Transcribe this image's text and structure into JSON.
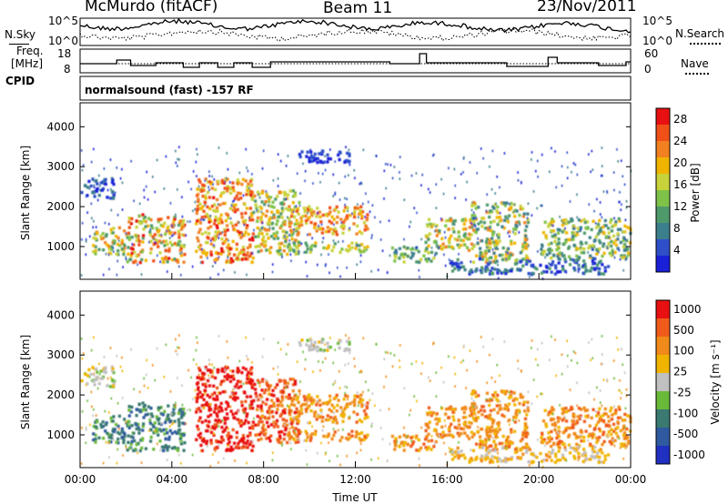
{
  "header": {
    "station": "McMurdo (fitACF)",
    "beam": "Beam 11",
    "date": "23/Nov/2011"
  },
  "panel_labels": {
    "nsky": "N.Sky",
    "nsearch": "N.Search",
    "freq_line1": "Freq.",
    "freq_line2": "[MHz]",
    "nave": "Nave",
    "cpid": "CPID",
    "cpid_value": "normalsound (fast) -157 RF"
  },
  "colors": {
    "frame": "#000000",
    "power_scale": [
      "#1a20d8",
      "#2f4fc8",
      "#3c7f8c",
      "#4f9a6a",
      "#7fc24a",
      "#c8d23a",
      "#f0b400",
      "#f08020",
      "#f05018",
      "#e81010"
    ],
    "velocity_scale": [
      "#2030c0",
      "#305aa0",
      "#3a7a70",
      "#6aba3a",
      "#c0c0c0",
      "#f0b400",
      "#f08a1a",
      "#f05a1a",
      "#e81010"
    ]
  },
  "chart_data": [
    {
      "type": "line",
      "name": "noise panel",
      "y_left_ticks": [
        "10^5",
        "10^0"
      ],
      "y_right_ticks": [
        "10^5",
        "10^0"
      ],
      "series": [
        {
          "name": "N.Sky",
          "style": "solid"
        },
        {
          "name": "N.Search",
          "style": "dotted"
        }
      ]
    },
    {
      "type": "line",
      "name": "frequency / nave panel",
      "y_left_ticks": [
        "18",
        "8"
      ],
      "y_right_ticks": [
        "60",
        "0"
      ],
      "series": [
        {
          "name": "Freq.",
          "style": "solid",
          "approx_mhz": 12
        },
        {
          "name": "Nave",
          "style": "dotted"
        }
      ]
    },
    {
      "type": "heatmap",
      "name": "power",
      "xlabel": "",
      "ylabel": "Slant Range [km]",
      "y_ticks": [
        1000,
        2000,
        3000,
        4000
      ],
      "ylim": [
        180,
        4600
      ],
      "colorbar_label": "Power [dB]",
      "colorbar_ticks": [
        4,
        8,
        12,
        16,
        20,
        24,
        28
      ],
      "colorbar_range": [
        0,
        30
      ]
    },
    {
      "type": "heatmap",
      "name": "velocity",
      "xlabel": "Time UT",
      "ylabel": "Slant Range [km]",
      "y_ticks": [
        1000,
        2000,
        3000,
        4000
      ],
      "ylim": [
        180,
        4600
      ],
      "x_ticks": [
        "00:00",
        "04:00",
        "08:00",
        "12:00",
        "16:00",
        "20:00",
        "00:00"
      ],
      "xlim_hours": [
        0,
        24
      ],
      "colorbar_label": "Velocity [m s⁻¹]",
      "colorbar_ticks": [
        "1000",
        "500",
        "100",
        "25",
        "-25",
        "-100",
        "-500",
        "-1000"
      ]
    }
  ]
}
